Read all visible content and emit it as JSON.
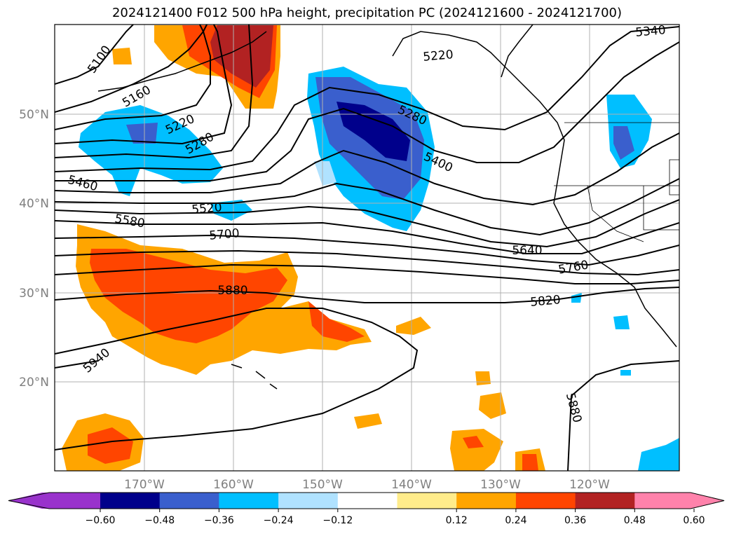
{
  "title": "2024121400 F012 500 hPa height, precipitation PC (2024121600 - 2024121700)",
  "lon_ticks": [
    "170°W",
    "160°W",
    "150°W",
    "140°W",
    "130°W",
    "120°W"
  ],
  "lat_ticks": [
    "50°N",
    "40°N",
    "30°N",
    "20°N"
  ],
  "contour_labels": [
    "5100",
    "5160",
    "5220",
    "5280",
    "5280",
    "5220",
    "5340",
    "5400",
    "5460",
    "5520",
    "5580",
    "5700",
    "5640",
    "5760",
    "5820",
    "5880",
    "5940",
    "5880"
  ],
  "colorbar": {
    "ticks": [
      "−0.60",
      "−0.48",
      "−0.36",
      "−0.24",
      "−0.12",
      "0.12",
      "0.24",
      "0.36",
      "0.48",
      "0.60"
    ],
    "colors": [
      "#9932cc",
      "#00008b",
      "#3a5fcd",
      "#00bfff",
      "#b0e2ff",
      "#ffffff",
      "#ffec8b",
      "#ffa500",
      "#ff4500",
      "#b22222",
      "#ff82ab"
    ]
  }
}
